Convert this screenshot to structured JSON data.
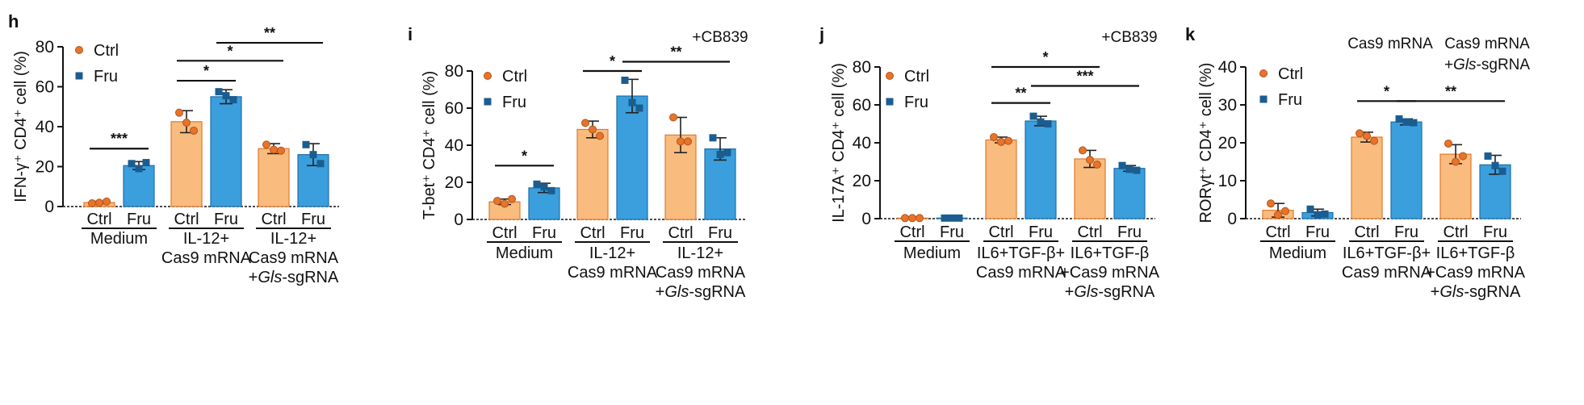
{
  "colors": {
    "ctrl_fill": "#f9bb7e",
    "ctrl_edge": "#e07a2e",
    "ctrl_dot": "#e8732a",
    "fru_fill": "#3a9fdc",
    "fru_edge": "#1f6fa8",
    "fru_dot": "#1b5d90",
    "axis": "#111111"
  },
  "chart_data": [
    {
      "panel": "h",
      "type": "bar",
      "ylabel": "IFN-γ⁺ CD4⁺ cell (%)",
      "ylim": [
        0,
        80
      ],
      "yticks": [
        0,
        20,
        40,
        60,
        80
      ],
      "legend": [
        "Ctrl",
        "Fru"
      ],
      "treatment_labels": [],
      "bars": [
        {
          "label": "Ctrl",
          "series": "Ctrl",
          "value": 2,
          "err": 0.6,
          "points": [
            1.6,
            2.5,
            1.9
          ]
        },
        {
          "label": "Fru",
          "series": "Fru",
          "value": 20.5,
          "err": 2,
          "points": [
            21.5,
            22,
            19
          ]
        },
        {
          "label": "Ctrl",
          "series": "Ctrl",
          "value": 42.5,
          "err": 5.5,
          "points": [
            47,
            38,
            42
          ]
        },
        {
          "label": "Fru",
          "series": "Fru",
          "value": 55,
          "err": 3.5,
          "points": [
            57.5,
            53.5,
            55.5
          ]
        },
        {
          "label": "Ctrl",
          "series": "Ctrl",
          "value": 29,
          "err": 2.5,
          "points": [
            31,
            28,
            28.5
          ]
        },
        {
          "label": "Fru",
          "series": "Fru",
          "value": 26,
          "err": 5.5,
          "points": [
            31,
            21.5,
            26
          ]
        }
      ],
      "groups": [
        {
          "lines": [
            "Medium"
          ],
          "italic": [],
          "bars": [
            0,
            1
          ]
        },
        {
          "lines": [
            "IL-12+",
            "Cas9 mRNA"
          ],
          "italic": [],
          "bars": [
            2,
            3
          ]
        },
        {
          "lines": [
            "IL-12+",
            "Cas9 mRNA",
            "+Gls-sgRNA"
          ],
          "italic": [
            "Gls"
          ],
          "bars": [
            4,
            5
          ]
        }
      ],
      "significance": [
        {
          "from": 0,
          "to": 1,
          "level": 29,
          "label": "***"
        },
        {
          "from": 2,
          "to": 3,
          "level": 63,
          "label": "*"
        },
        {
          "from": 2,
          "to": 4,
          "level": 73,
          "label": "*"
        },
        {
          "from": 3,
          "to": 5,
          "level": 82,
          "label": "**"
        }
      ]
    },
    {
      "panel": "i",
      "type": "bar",
      "ylabel": "T-bet⁺ CD4⁺ cell (%)",
      "ylim": [
        0,
        80
      ],
      "yticks": [
        0,
        20,
        40,
        60,
        80
      ],
      "legend": [
        "Ctrl",
        "Fru"
      ],
      "treatment_labels": [
        {
          "text": "+CB839",
          "above_bar": 5
        }
      ],
      "bars": [
        {
          "label": "Ctrl",
          "series": "Ctrl",
          "value": 9.5,
          "err": 1.5,
          "points": [
            10,
            11,
            8.5
          ]
        },
        {
          "label": "Fru",
          "series": "Fru",
          "value": 17,
          "err": 2.5,
          "points": [
            19,
            15.5,
            17.5
          ]
        },
        {
          "label": "Ctrl",
          "series": "Ctrl",
          "value": 48.5,
          "err": 4.5,
          "points": [
            52,
            45,
            48.5
          ]
        },
        {
          "label": "Fru",
          "series": "Fru",
          "value": 66.5,
          "err": 9,
          "points": [
            75,
            60,
            63
          ]
        },
        {
          "label": "Ctrl",
          "series": "Ctrl",
          "value": 45.5,
          "err": 9.5,
          "points": [
            55,
            42,
            42
          ]
        },
        {
          "label": "Fru",
          "series": "Fru",
          "value": 38,
          "err": 6,
          "points": [
            44,
            36,
            35
          ]
        }
      ],
      "groups": [
        {
          "lines": [
            "Medium"
          ],
          "italic": [],
          "bars": [
            0,
            1
          ]
        },
        {
          "lines": [
            "IL-12+",
            "Cas9 mRNA"
          ],
          "italic": [],
          "bars": [
            2,
            3
          ]
        },
        {
          "lines": [
            "IL-12+",
            "Cas9 mRNA",
            "+Gls-sgRNA"
          ],
          "italic": [
            "Gls"
          ],
          "bars": [
            4,
            5
          ]
        }
      ],
      "significance": [
        {
          "from": 0,
          "to": 1,
          "level": 29,
          "label": "*"
        },
        {
          "from": 2,
          "to": 3,
          "level": 80,
          "label": "*"
        },
        {
          "from": 3,
          "to": 5,
          "level": 85,
          "label": "**"
        }
      ]
    },
    {
      "panel": "j",
      "type": "bar",
      "ylabel": "IL-17A⁺ CD4⁺ cell (%)",
      "ylim": [
        0,
        80
      ],
      "yticks": [
        0,
        20,
        40,
        60,
        80
      ],
      "legend": [
        "Ctrl",
        "Fru"
      ],
      "treatment_labels": [
        {
          "text": "+CB839",
          "above_bar": 5
        }
      ],
      "bars": [
        {
          "label": "Ctrl",
          "series": "Ctrl",
          "value": 0.3,
          "err": 0,
          "points": [
            0.3,
            0.3,
            0.3
          ]
        },
        {
          "label": "Fru",
          "series": "Fru",
          "value": 0.3,
          "err": 0,
          "points": [
            0.3,
            0.3,
            0.3
          ]
        },
        {
          "label": "Ctrl",
          "series": "Ctrl",
          "value": 41.5,
          "err": 1.5,
          "points": [
            43,
            41,
            40.5
          ]
        },
        {
          "label": "Fru",
          "series": "Fru",
          "value": 51.5,
          "err": 2.5,
          "points": [
            54,
            50,
            51
          ]
        },
        {
          "label": "Ctrl",
          "series": "Ctrl",
          "value": 31.5,
          "err": 4.5,
          "points": [
            36,
            28.5,
            31
          ]
        },
        {
          "label": "Fru",
          "series": "Fru",
          "value": 26.5,
          "err": 1.5,
          "points": [
            28,
            25.5,
            26
          ]
        }
      ],
      "groups": [
        {
          "lines": [
            "Medium"
          ],
          "italic": [],
          "bars": [
            0,
            1
          ]
        },
        {
          "lines": [
            "IL6+TGF-β+",
            "Cas9 mRNA"
          ],
          "italic": [],
          "bars": [
            2,
            3
          ]
        },
        {
          "lines": [
            "IL6+TGF-β",
            "+Cas9 mRNA",
            "+Gls-sgRNA"
          ],
          "italic": [
            "Gls"
          ],
          "bars": [
            4,
            5
          ]
        }
      ],
      "significance": [
        {
          "from": 2,
          "to": 3,
          "level": 61,
          "label": "**"
        },
        {
          "from": 3,
          "to": 5,
          "level": 70,
          "label": "***"
        },
        {
          "from": 2,
          "to": 4,
          "level": 80,
          "label": "*"
        }
      ]
    },
    {
      "panel": "k",
      "type": "bar",
      "ylabel": "RORγt⁺ CD4⁺ cell (%)",
      "ylim": [
        0,
        40
      ],
      "yticks": [
        0,
        10,
        20,
        30,
        40
      ],
      "legend": [
        "Ctrl",
        "Fru"
      ],
      "treatment_labels": [
        {
          "text": "Cas9 mRNA",
          "above_bar": 3
        },
        {
          "text": "Cas9 mRNA",
          "above_bar": 5,
          "second": "+Gls-sgRNA"
        }
      ],
      "bars": [
        {
          "label": "Ctrl",
          "series": "Ctrl",
          "value": 2.2,
          "err": 1.8,
          "points": [
            4,
            2,
            1
          ]
        },
        {
          "label": "Fru",
          "series": "Fru",
          "value": 1.6,
          "err": 0.9,
          "points": [
            2.5,
            1.2,
            1
          ]
        },
        {
          "label": "Ctrl",
          "series": "Ctrl",
          "value": 21.5,
          "err": 1.3,
          "points": [
            22.5,
            20.5,
            21.8
          ]
        },
        {
          "label": "Fru",
          "series": "Fru",
          "value": 25.5,
          "err": 0.8,
          "points": [
            26.3,
            25.3,
            25.5
          ]
        },
        {
          "label": "Ctrl",
          "series": "Ctrl",
          "value": 17,
          "err": 2.5,
          "points": [
            19.8,
            16.5,
            15
          ]
        },
        {
          "label": "Fru",
          "series": "Fru",
          "value": 14.2,
          "err": 2.5,
          "points": [
            16.5,
            12.5,
            14
          ]
        }
      ],
      "groups": [
        {
          "lines": [
            "Medium"
          ],
          "italic": [],
          "bars": [
            0,
            1
          ]
        },
        {
          "lines": [
            "IL6+TGF-β+",
            "Cas9 mRNA"
          ],
          "italic": [],
          "bars": [
            2,
            3
          ]
        },
        {
          "lines": [
            "IL6+TGF-β",
            "+Cas9 mRNA",
            "+Gls-sgRNA"
          ],
          "italic": [
            "Gls"
          ],
          "bars": [
            4,
            5
          ]
        }
      ],
      "significance": [
        {
          "from": 2,
          "to": 3,
          "level": 31,
          "label": "*"
        },
        {
          "from": 3,
          "to": 5,
          "level": 31,
          "label": "**"
        }
      ]
    }
  ]
}
